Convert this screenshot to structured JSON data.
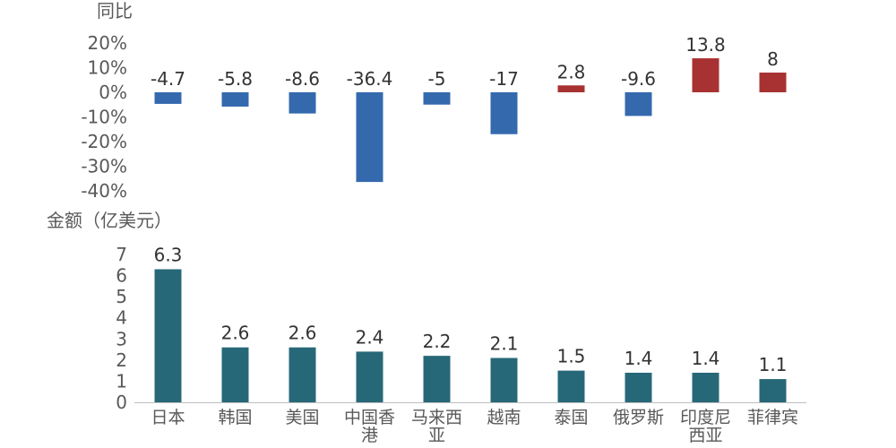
{
  "chart_data": [
    {
      "type": "bar",
      "ylabel": "同比",
      "unit": "%",
      "categories": [
        "日本",
        "韩国",
        "美国",
        "中国香港",
        "马来西亚",
        "越南",
        "泰国",
        "俄罗斯",
        "印度尼西亚",
        "菲律宾"
      ],
      "values": [
        -4.7,
        -5.8,
        -8.6,
        -36.4,
        -5,
        -17,
        2.8,
        -9.6,
        13.8,
        8
      ],
      "ylim": [
        -40,
        20
      ],
      "yticks": [
        "20%",
        "10%",
        "0%",
        "-10%",
        "-20%",
        "-30%",
        "-40%"
      ],
      "colors": {
        "positive": "#a83232",
        "negative": "#3469ae"
      },
      "grid": false,
      "legend": "none"
    },
    {
      "type": "bar",
      "ylabel": "金额（亿美元）",
      "categories": [
        "日本",
        "韩国",
        "美国",
        "中国香港",
        "马来西亚",
        "越南",
        "泰国",
        "俄罗斯",
        "印度尼西亚",
        "菲律宾"
      ],
      "category_lines": [
        [
          "日本"
        ],
        [
          "韩国"
        ],
        [
          "美国"
        ],
        [
          "中国香",
          "港"
        ],
        [
          "马来西",
          "亚"
        ],
        [
          "越南"
        ],
        [
          "泰国"
        ],
        [
          "俄罗斯"
        ],
        [
          "印度尼",
          "西亚"
        ],
        [
          "菲律宾"
        ]
      ],
      "values": [
        6.3,
        2.6,
        2.6,
        2.4,
        2.2,
        2.1,
        1.5,
        1.4,
        1.4,
        1.1
      ],
      "ylim": [
        0,
        7
      ],
      "yticks": [
        "7",
        "6",
        "5",
        "4",
        "3",
        "2",
        "1",
        "0"
      ],
      "colors": {
        "bar": "#276878"
      },
      "grid": false,
      "legend": "none"
    }
  ]
}
